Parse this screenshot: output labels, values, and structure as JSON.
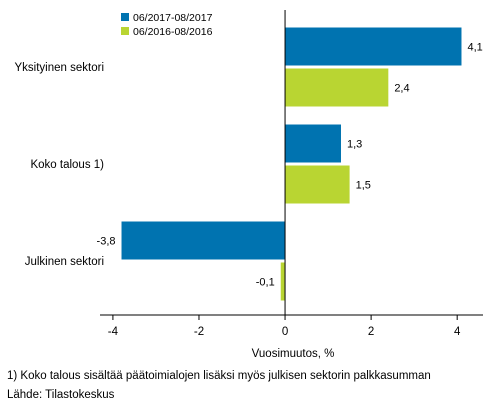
{
  "chart_data": {
    "type": "bar",
    "orientation": "horizontal",
    "categories": [
      "Yksityinen sektori",
      "Koko talous 1)",
      "Julkinen sektori"
    ],
    "series": [
      {
        "name": "06/2017-08/2017",
        "values": [
          4.1,
          1.3,
          -3.8
        ],
        "labels": [
          "4,1",
          "1,3",
          "-3,8"
        ],
        "color": "#0073b0"
      },
      {
        "name": "06/2016-08/2016",
        "values": [
          2.4,
          1.5,
          -0.1
        ],
        "labels": [
          "2,4",
          "1,5",
          "-0,1"
        ],
        "color": "#b9d532"
      }
    ],
    "xlabel": "Vuosimuutos, %",
    "xlim": [
      -4.3,
      4.6
    ],
    "xticks": [
      -4,
      -2,
      0,
      2,
      4
    ],
    "xtick_labels": [
      "-4",
      "-2",
      "0",
      "2",
      "4"
    ],
    "grid": false,
    "legend_position": "top-left"
  },
  "footnote": "1) Koko talous sisältää päätoimialojen lisäksi myös julkisen sektorin palkkasumman",
  "source": "Lähde: Tilastokeskus"
}
